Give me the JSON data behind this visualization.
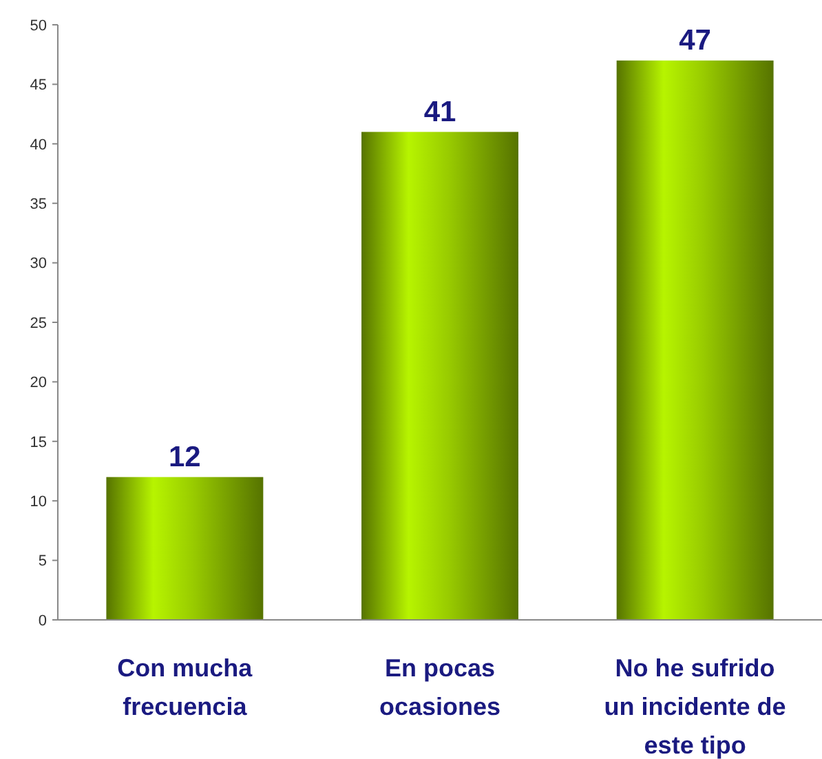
{
  "chart_data": {
    "type": "bar",
    "categories": [
      "Con mucha frecuencia",
      "En pocas ocasiones",
      "No he sufrido un incidente de este tipo"
    ],
    "values": [
      12,
      41,
      47
    ],
    "color": "#99cc00",
    "ylim": [
      0,
      50
    ],
    "yticks": [
      0,
      5,
      10,
      15,
      20,
      25,
      30,
      35,
      40,
      45,
      50
    ],
    "data_labels": true
  }
}
